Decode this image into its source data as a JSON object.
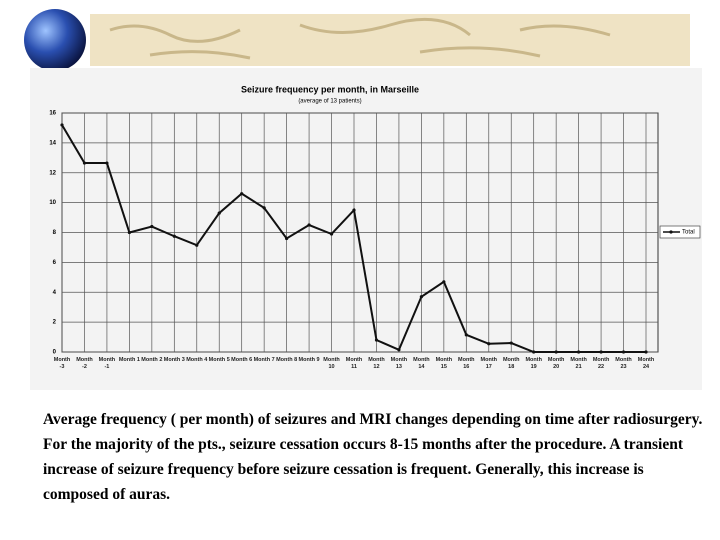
{
  "chart_data": {
    "type": "line",
    "title": "Seizure frequency per month, in Marseille",
    "subtitle": "(average of 13 patients)",
    "categories": [
      "Month -3",
      "Month -2",
      "Month -1",
      "Month 1",
      "Month 2",
      "Month 3",
      "Month 4",
      "Month 5",
      "Month 6",
      "Month 7",
      "Month 8",
      "Month 9",
      "Month 10",
      "Month 11",
      "Month 12",
      "Month 13",
      "Month 14",
      "Month 15",
      "Month 16",
      "Month 17",
      "Month 18",
      "Month 19",
      "Month 20",
      "Month 21",
      "Month 22",
      "Month 23",
      "Month 24"
    ],
    "series": [
      {
        "name": "Total",
        "color": "#111111",
        "values": [
          15.2,
          12.65,
          12.65,
          8.0,
          8.4,
          7.75,
          7.15,
          9.3,
          10.6,
          9.65,
          7.6,
          8.5,
          7.9,
          9.5,
          0.8,
          0.15,
          3.7,
          4.7,
          1.15,
          0.55,
          0.6,
          0,
          0,
          0,
          0,
          0,
          0
        ]
      }
    ],
    "ylim": [
      0,
      16
    ],
    "yticks": [
      0,
      2,
      4,
      6,
      8,
      10,
      12,
      14,
      16
    ],
    "grid": true,
    "legend": "right"
  },
  "caption": "Average frequency ( per month) of seizures and MRI changes depending on time after radiosurgery. For the majority of the pts., seizure cessation occurs 8-15 months after the procedure. A transient increase of seizure frequency before seizure cessation is frequent.  Generally, this increase is composed of auras."
}
